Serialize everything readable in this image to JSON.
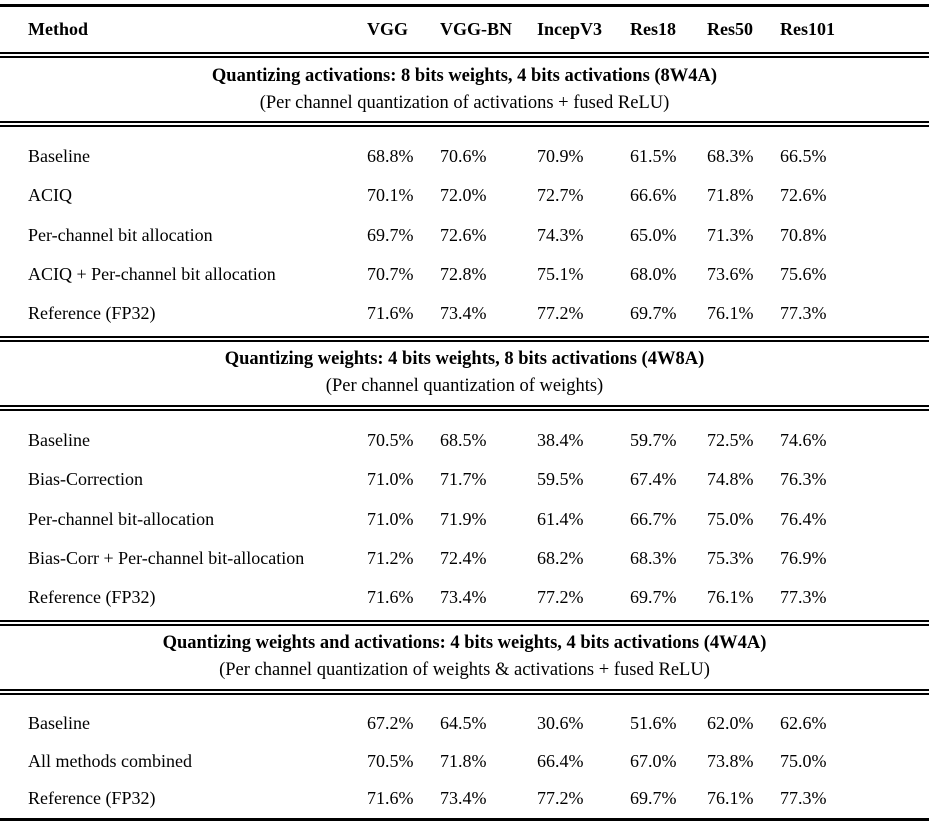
{
  "colors": {
    "text": "#000000",
    "background": "#ffffff",
    "rule": "#000000"
  },
  "table": {
    "columns": [
      "Method",
      "VGG",
      "VGG-BN",
      "IncepV3",
      "Res18",
      "Res50",
      "Res101"
    ],
    "sections": [
      {
        "title": "Quantizing activations: 8 bits weights, 4 bits activations (8W4A)",
        "subtitle": "(Per channel quantization of activations + fused ReLU)",
        "rows": [
          {
            "method": "Baseline",
            "values": [
              "68.8%",
              "70.6%",
              "70.9%",
              "61.5%",
              "68.3%",
              "66.5%"
            ]
          },
          {
            "method": "ACIQ",
            "values": [
              "70.1%",
              "72.0%",
              "72.7%",
              "66.6%",
              "71.8%",
              "72.6%"
            ]
          },
          {
            "method": "Per-channel bit allocation",
            "values": [
              "69.7%",
              "72.6%",
              "74.3%",
              "65.0%",
              "71.3%",
              "70.8%"
            ]
          },
          {
            "method": "ACIQ + Per-channel bit allocation",
            "values": [
              "70.7%",
              "72.8%",
              "75.1%",
              "68.0%",
              "73.6%",
              "75.6%"
            ]
          },
          {
            "method": "Reference (FP32)",
            "values": [
              "71.6%",
              "73.4%",
              "77.2%",
              "69.7%",
              "76.1%",
              "77.3%"
            ]
          }
        ]
      },
      {
        "title": "Quantizing weights: 4 bits weights, 8 bits activations (4W8A)",
        "subtitle": "(Per channel quantization of weights)",
        "rows": [
          {
            "method": "Baseline",
            "values": [
              "70.5%",
              "68.5%",
              "38.4%",
              "59.7%",
              "72.5%",
              "74.6%"
            ]
          },
          {
            "method": "Bias-Correction",
            "values": [
              "71.0%",
              "71.7%",
              "59.5%",
              "67.4%",
              "74.8%",
              "76.3%"
            ]
          },
          {
            "method": "Per-channel bit-allocation",
            "values": [
              "71.0%",
              "71.9%",
              "61.4%",
              "66.7%",
              "75.0%",
              "76.4%"
            ]
          },
          {
            "method": "Bias-Corr + Per-channel bit-allocation",
            "values": [
              "71.2%",
              "72.4%",
              "68.2%",
              "68.3%",
              "75.3%",
              "76.9%"
            ]
          },
          {
            "method": "Reference (FP32)",
            "values": [
              "71.6%",
              "73.4%",
              "77.2%",
              "69.7%",
              "76.1%",
              "77.3%"
            ]
          }
        ]
      },
      {
        "title": "Quantizing weights and activations: 4 bits weights, 4 bits activations (4W4A)",
        "subtitle": "(Per channel quantization of weights & activations + fused ReLU)",
        "rows": [
          {
            "method": "Baseline",
            "values": [
              "67.2%",
              "64.5%",
              "30.6%",
              "51.6%",
              "62.0%",
              "62.6%"
            ]
          },
          {
            "method": "All methods combined",
            "values": [
              "70.5%",
              "71.8%",
              "66.4%",
              "67.0%",
              "73.8%",
              "75.0%"
            ]
          },
          {
            "method": "Reference (FP32)",
            "values": [
              "71.6%",
              "73.4%",
              "77.2%",
              "69.7%",
              "76.1%",
              "77.3%"
            ]
          }
        ]
      }
    ]
  }
}
